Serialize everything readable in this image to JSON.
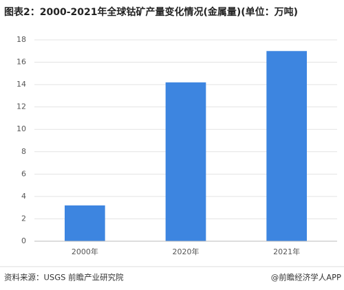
{
  "chart_data": {
    "type": "bar",
    "title": "图表2：2000-2021年全球钴矿产量变化情况(金属量)(单位：万吨)",
    "categories": [
      "2000年",
      "2020年",
      "2021年"
    ],
    "values": [
      3.2,
      14.2,
      17
    ],
    "color": "#3d85e0",
    "ylim": [
      0,
      18
    ],
    "yticks": [
      0,
      2,
      4,
      6,
      8,
      10,
      12,
      14,
      16,
      18
    ],
    "grid": true,
    "source": "资料来源：USGS 前瞻产业研究院",
    "credit": "@前瞻经济学人APP"
  }
}
